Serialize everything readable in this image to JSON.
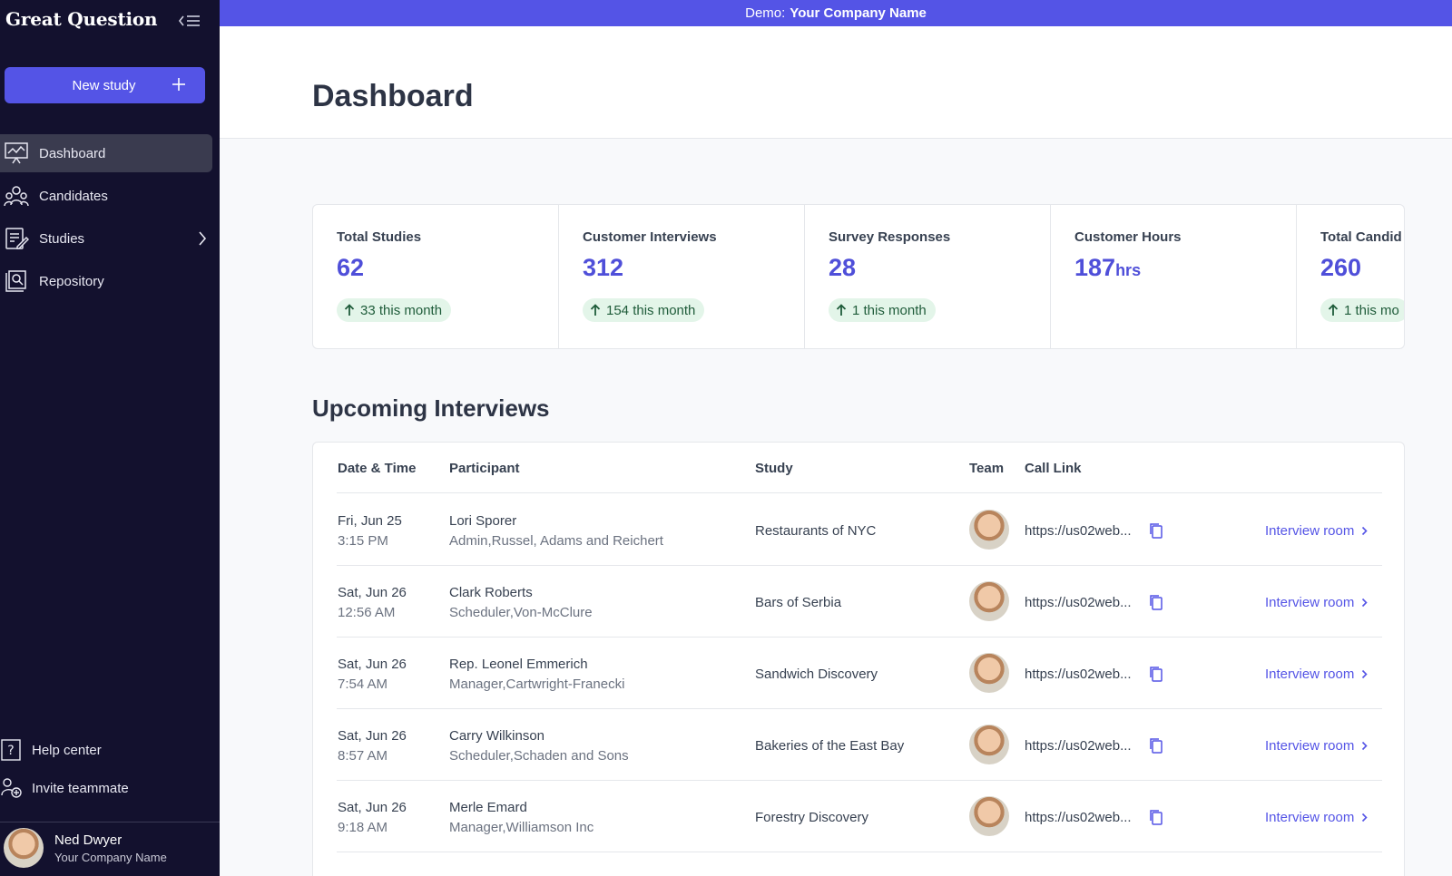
{
  "app": {
    "logo": "Great Question",
    "new_study_label": "New study"
  },
  "sidebar": {
    "items": [
      {
        "label": "Dashboard",
        "icon": "presentation-chart-icon",
        "active": true
      },
      {
        "label": "Candidates",
        "icon": "users-group-icon"
      },
      {
        "label": "Studies",
        "icon": "document-edit-icon"
      },
      {
        "label": "Repository",
        "icon": "folder-search-icon"
      }
    ],
    "help_label": "Help center",
    "invite_label": "Invite teammate",
    "user": {
      "name": "Ned Dwyer",
      "company": "Your Company Name"
    }
  },
  "banner": {
    "prefix": "Demo:",
    "company": "Your Company Name"
  },
  "page": {
    "title": "Dashboard"
  },
  "stats": [
    {
      "label": "Total Studies",
      "value": "62",
      "unit": "",
      "delta": "33 this month"
    },
    {
      "label": "Customer Interviews",
      "value": "312",
      "unit": "",
      "delta": "154 this month"
    },
    {
      "label": "Survey Responses",
      "value": "28",
      "unit": "",
      "delta": "1 this month"
    },
    {
      "label": "Customer Hours",
      "value": "187",
      "unit": "hrs",
      "delta": ""
    },
    {
      "label": "Total Candid",
      "value": "260",
      "unit": "",
      "delta": "1 this mo"
    }
  ],
  "upcoming": {
    "title": "Upcoming Interviews",
    "columns": [
      "Date & Time",
      "Participant",
      "Study",
      "Team",
      "Call Link"
    ],
    "room_label": "Interview room",
    "rows": [
      {
        "day": "Fri, Jun 25",
        "time": "3:15 PM",
        "name": "Lori Sporer",
        "role": "Admin,Russel, Adams and Reichert",
        "study": "Restaurants of NYC",
        "link": "https://us02web..."
      },
      {
        "day": "Sat, Jun 26",
        "time": "12:56 AM",
        "name": "Clark Roberts",
        "role": "Scheduler,Von-McClure",
        "study": "Bars of Serbia",
        "link": "https://us02web..."
      },
      {
        "day": "Sat, Jun 26",
        "time": "7:54 AM",
        "name": "Rep. Leonel Emmerich",
        "role": "Manager,Cartwright-Franecki",
        "study": "Sandwich Discovery",
        "link": "https://us02web..."
      },
      {
        "day": "Sat, Jun 26",
        "time": "8:57 AM",
        "name": "Carry Wilkinson",
        "role": "Scheduler,Schaden and Sons",
        "study": "Bakeries of the East Bay",
        "link": "https://us02web..."
      },
      {
        "day": "Sat, Jun 26",
        "time": "9:18 AM",
        "name": "Merle Emard",
        "role": "Manager,Williamson Inc",
        "study": "Forestry Discovery",
        "link": "https://us02web..."
      }
    ]
  },
  "colors": {
    "sidebar_bg": "#13112e",
    "accent": "#5454e6",
    "stat_value": "#4f4fd9",
    "delta_bg": "#e3f5e9"
  }
}
